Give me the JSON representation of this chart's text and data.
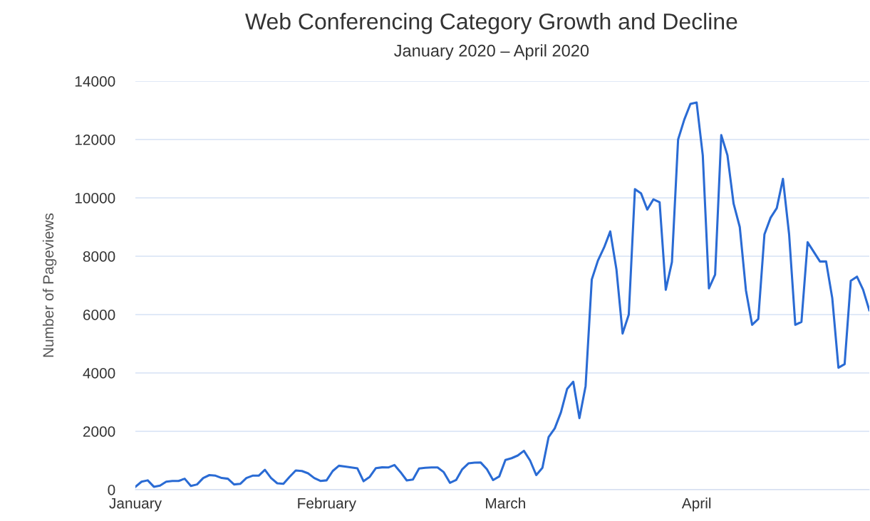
{
  "chart_data": {
    "type": "line",
    "title": "Web Conferencing Category Growth and Decline",
    "subtitle": "January 2020 – April 2020",
    "ylabel": "Number of Pageviews",
    "x": [
      "2020-01-01",
      "2020-01-02",
      "2020-01-03",
      "2020-01-04",
      "2020-01-05",
      "2020-01-06",
      "2020-01-07",
      "2020-01-08",
      "2020-01-09",
      "2020-01-10",
      "2020-01-11",
      "2020-01-12",
      "2020-01-13",
      "2020-01-14",
      "2020-01-15",
      "2020-01-16",
      "2020-01-17",
      "2020-01-18",
      "2020-01-19",
      "2020-01-20",
      "2020-01-21",
      "2020-01-22",
      "2020-01-23",
      "2020-01-24",
      "2020-01-25",
      "2020-01-26",
      "2020-01-27",
      "2020-01-28",
      "2020-01-29",
      "2020-01-30",
      "2020-01-31",
      "2020-02-01",
      "2020-02-02",
      "2020-02-03",
      "2020-02-04",
      "2020-02-05",
      "2020-02-06",
      "2020-02-07",
      "2020-02-08",
      "2020-02-09",
      "2020-02-10",
      "2020-02-11",
      "2020-02-12",
      "2020-02-13",
      "2020-02-14",
      "2020-02-15",
      "2020-02-16",
      "2020-02-17",
      "2020-02-18",
      "2020-02-19",
      "2020-02-20",
      "2020-02-21",
      "2020-02-22",
      "2020-02-23",
      "2020-02-24",
      "2020-02-25",
      "2020-02-26",
      "2020-02-27",
      "2020-02-28",
      "2020-02-29",
      "2020-03-01",
      "2020-03-02",
      "2020-03-03",
      "2020-03-04",
      "2020-03-05",
      "2020-03-06",
      "2020-03-07",
      "2020-03-08",
      "2020-03-09",
      "2020-03-10",
      "2020-03-11",
      "2020-03-12",
      "2020-03-13",
      "2020-03-14",
      "2020-03-15",
      "2020-03-16",
      "2020-03-17",
      "2020-03-18",
      "2020-03-19",
      "2020-03-20",
      "2020-03-21",
      "2020-03-22",
      "2020-03-23",
      "2020-03-24",
      "2020-03-25",
      "2020-03-26",
      "2020-03-27",
      "2020-03-28",
      "2020-03-29",
      "2020-03-30",
      "2020-03-31",
      "2020-04-01",
      "2020-04-02",
      "2020-04-03",
      "2020-04-04",
      "2020-04-05",
      "2020-04-06",
      "2020-04-07",
      "2020-04-08",
      "2020-04-09",
      "2020-04-10",
      "2020-04-11",
      "2020-04-12",
      "2020-04-13",
      "2020-04-14",
      "2020-04-15",
      "2020-04-16",
      "2020-04-17",
      "2020-04-18",
      "2020-04-19",
      "2020-04-20",
      "2020-04-21",
      "2020-04-22",
      "2020-04-23",
      "2020-04-24",
      "2020-04-25",
      "2020-04-26",
      "2020-04-27",
      "2020-04-28",
      "2020-04-29"
    ],
    "series": [
      {
        "color": "#2a6bd4",
        "values": [
          100,
          275,
          320,
          100,
          140,
          275,
          300,
          300,
          375,
          130,
          180,
          400,
          500,
          480,
          400,
          375,
          180,
          200,
          400,
          480,
          480,
          680,
          400,
          220,
          200,
          440,
          660,
          640,
          560,
          400,
          300,
          320,
          640,
          820,
          790,
          760,
          730,
          290,
          440,
          740,
          765,
          760,
          845,
          600,
          317,
          350,
          724,
          750,
          760,
          760,
          600,
          236,
          330,
          700,
          900,
          927,
          930,
          700,
          330,
          455,
          1020,
          1080,
          1170,
          1333,
          1000,
          500,
          750,
          1800,
          2100,
          2650,
          3450,
          3700,
          2450,
          3550,
          7200,
          7850,
          8300,
          8850,
          7550,
          5350,
          6000,
          10300,
          10150,
          9600,
          9950,
          9850,
          6850,
          7800,
          12000,
          12680,
          13220,
          13270,
          11460,
          6900,
          7370,
          12150,
          11460,
          9800,
          9000,
          6830,
          5650,
          5850,
          8750,
          9320,
          9650,
          10650,
          8750,
          5650,
          5750,
          8480,
          8150,
          7820,
          7820,
          6560,
          4180,
          4300,
          7160,
          7300,
          6850,
          6150
        ]
      }
    ],
    "xlim": [
      "2020-01-01",
      "2020-04-29"
    ],
    "xticks": [
      {
        "value": "2020-01-01",
        "label": "January"
      },
      {
        "value": "2020-02-01",
        "label": "February"
      },
      {
        "value": "2020-03-01",
        "label": "March"
      },
      {
        "value": "2020-04-01",
        "label": "April"
      }
    ],
    "ylim": [
      0,
      14000
    ],
    "yticks": [
      0,
      2000,
      4000,
      6000,
      8000,
      10000,
      12000,
      14000
    ],
    "grid": "y",
    "marker": "none",
    "line_style": "solid"
  }
}
